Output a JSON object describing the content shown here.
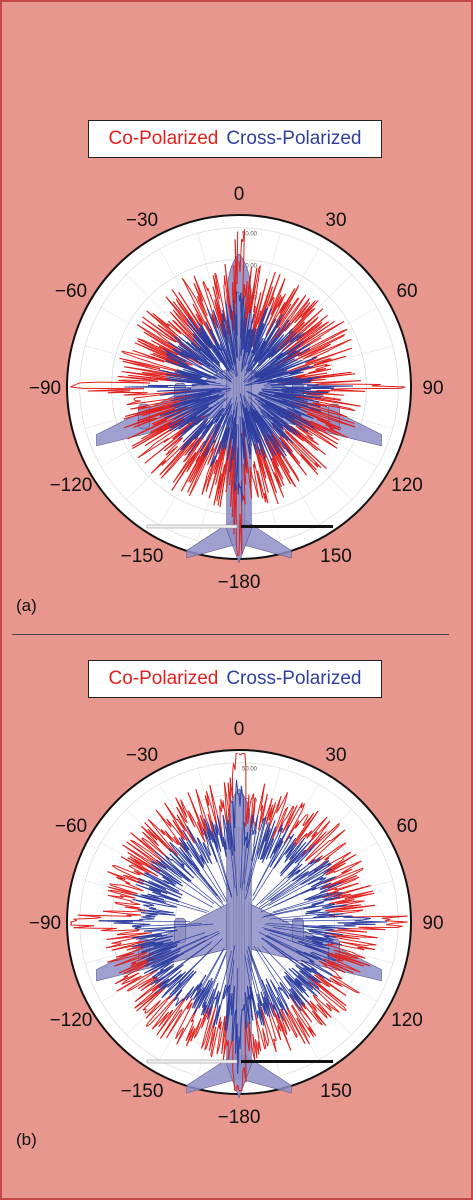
{
  "colors": {
    "co_polarized": "#e0201c",
    "cross_polarized": "#2f3fa0",
    "background": "#e8978f",
    "aircraft": "#8f8fc8"
  },
  "chart_data": [
    {
      "type": "polar",
      "panel_label": "(a)",
      "legend": [
        "Co-Polarized",
        "Cross-Polarized"
      ],
      "angle_ticks": [
        "0",
        "30",
        "60",
        "90",
        "120",
        "150",
        "−180",
        "−150",
        "−120",
        "−90",
        "−60",
        "−30"
      ],
      "angle_values": [
        0,
        30,
        60,
        90,
        120,
        150,
        180,
        -150,
        -120,
        -90,
        -60,
        -30
      ],
      "ring_labels": [
        "50.00",
        "40.00",
        "30.00"
      ],
      "radial_range": [
        0,
        50
      ],
      "series": [
        {
          "name": "Co-Polarized",
          "color": "#e0201c",
          "median": 24,
          "spread": 12
        },
        {
          "name": "Cross-Polarized",
          "color": "#2f3fa0",
          "median": 15,
          "spread": 10
        }
      ],
      "grid": true
    },
    {
      "type": "polar",
      "panel_label": "(b)",
      "legend": [
        "Co-Polarized",
        "Cross-Polarized"
      ],
      "angle_ticks": [
        "0",
        "30",
        "60",
        "90",
        "120",
        "150",
        "−180",
        "−150",
        "−120",
        "−90",
        "−60",
        "−30"
      ],
      "angle_values": [
        0,
        30,
        60,
        90,
        120,
        150,
        180,
        -150,
        -120,
        -90,
        -60,
        -30
      ],
      "ring_labels": [
        "50.00",
        "40.00",
        "30.00"
      ],
      "radial_range": [
        0,
        50
      ],
      "series": [
        {
          "name": "Co-Polarized",
          "color": "#e0201c",
          "median": 33,
          "spread": 8
        },
        {
          "name": "Cross-Polarized",
          "color": "#2f3fa0",
          "median": 25,
          "spread": 7
        }
      ],
      "grid": true
    }
  ]
}
